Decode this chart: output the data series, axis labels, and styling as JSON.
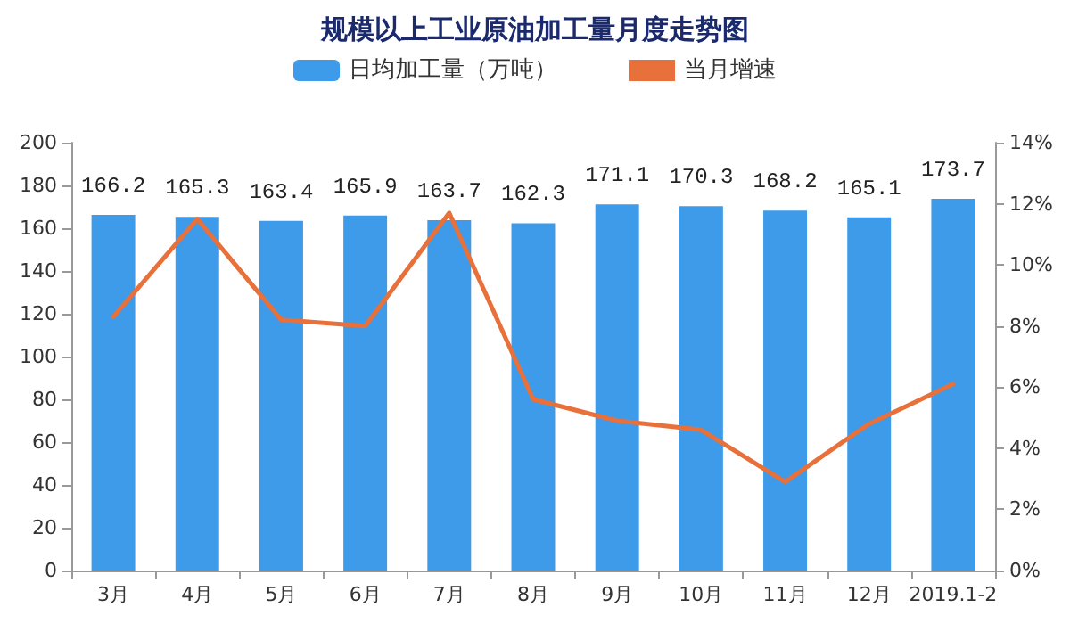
{
  "chart_data": {
    "type": "bar",
    "title": "规模以上工业原油加工量月度走势图",
    "categories": [
      "3月",
      "4月",
      "5月",
      "6月",
      "7月",
      "8月",
      "9月",
      "10月",
      "11月",
      "12月",
      "2019.1-2"
    ],
    "series": [
      {
        "name": "日均加工量（万吨）",
        "color": "#3d9be9",
        "values": [
          166.2,
          165.3,
          163.4,
          165.9,
          163.7,
          162.3,
          171.1,
          170.3,
          168.2,
          165.1,
          173.7
        ],
        "data_labels": true
      },
      {
        "name": "当月增速",
        "type": "line",
        "axis": "y2",
        "color": "#e8703a",
        "values": [
          8.3,
          11.5,
          8.2,
          8.0,
          11.7,
          5.6,
          4.9,
          4.6,
          2.9,
          4.8,
          6.1
        ]
      }
    ],
    "ylim": [
      0,
      200
    ],
    "yticks": [
      0,
      20,
      40,
      60,
      80,
      100,
      120,
      140,
      160,
      180,
      200
    ],
    "y2lim": [
      0,
      14
    ],
    "y2ticks": [
      {
        "value": 0,
        "label": "0%"
      },
      {
        "value": 2,
        "label": "2%"
      },
      {
        "value": 4,
        "label": "4%"
      },
      {
        "value": 6,
        "label": "6%"
      },
      {
        "value": 8,
        "label": "8%"
      },
      {
        "value": 10,
        "label": "10%"
      },
      {
        "value": 12,
        "label": "12%"
      },
      {
        "value": 14,
        "label": "14%"
      }
    ],
    "legend": "top",
    "grid": false,
    "marker": "none",
    "line_style": "solid"
  }
}
